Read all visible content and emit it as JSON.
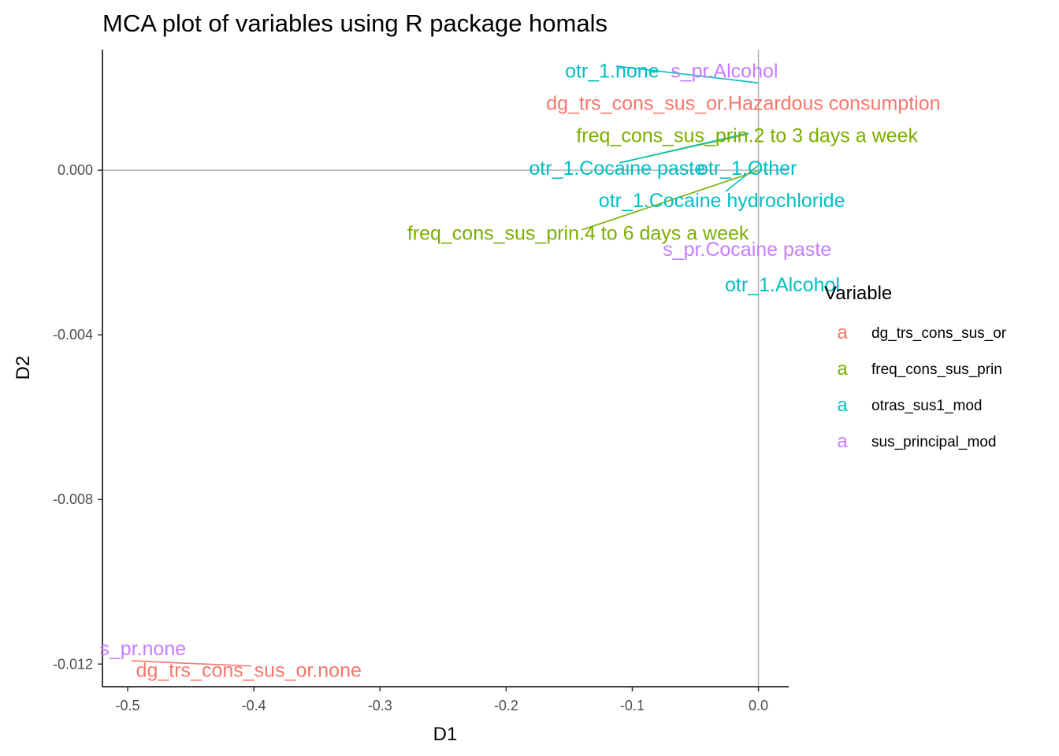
{
  "chart_data": {
    "type": "scatter",
    "title": "MCA plot of variables using R package homals",
    "xlabel": "D1",
    "ylabel": "D2",
    "xlim": [
      -0.52,
      0.024
    ],
    "ylim": [
      -0.01255,
      0.00293
    ],
    "xticks": [
      -0.5,
      -0.4,
      -0.3,
      -0.2,
      -0.1,
      0.0
    ],
    "xtick_labels": [
      "-0.5",
      "-0.4",
      "-0.3",
      "-0.2",
      "-0.1",
      "0.0"
    ],
    "yticks": [
      0.0,
      -0.004,
      -0.008,
      -0.012
    ],
    "ytick_labels": [
      "0.000",
      "-0.004",
      "-0.008",
      "-0.012"
    ],
    "reference_lines": {
      "x": 0,
      "y": 0
    },
    "grid": false,
    "legend": {
      "title": "Variable",
      "position": "right",
      "key_glyph": "a",
      "entries": [
        {
          "name": "dg_trs_cons_sus_or",
          "color": "#F8766D"
        },
        {
          "name": "freq_cons_sus_prin",
          "color": "#7CAE00"
        },
        {
          "name": "otras_sus1_mod",
          "color": "#00BFC4"
        },
        {
          "name": "sus_principal_mod",
          "color": "#C77CFF"
        }
      ]
    },
    "points": [
      {
        "label": "otr_1.none",
        "group": "otras_sus1_mod",
        "x": 0.0,
        "y": 0.0021,
        "label_x": -0.116,
        "label_y": 0.00242
      },
      {
        "label": "s_pr.Alcohol",
        "group": "sus_principal_mod",
        "x": 0.0,
        "y": 0.0021,
        "label_x": -0.027,
        "label_y": 0.00242
      },
      {
        "label": "dg_trs_cons_sus_or.Hazardous consumption",
        "group": "dg_trs_cons_sus_or",
        "x": 0.0,
        "y": 0.0021,
        "label_x": -0.012,
        "label_y": 0.00164
      },
      {
        "label": "freq_cons_sus_prin.2 to 3 days a week",
        "group": "freq_cons_sus_prin",
        "x": 0.0,
        "y": 0.00085,
        "label_x": -0.009,
        "label_y": 0.00085
      },
      {
        "label": "otr_1.Cocaine paste",
        "group": "otras_sus1_mod",
        "x": 0.0,
        "y": 0.00085,
        "label_x": -0.112,
        "label_y": 6e-05
      },
      {
        "label": "otr_1.Other",
        "group": "otras_sus1_mod",
        "x": 0.0,
        "y": 0.0001,
        "label_x": -0.009,
        "label_y": 6e-05
      },
      {
        "label": "otr_1.Cocaine hydrochloride",
        "group": "otras_sus1_mod",
        "x": 0.0,
        "y": 0.0001,
        "label_x": -0.029,
        "label_y": -0.00072
      },
      {
        "label": "freq_cons_sus_prin.4 to 6 days a week",
        "group": "freq_cons_sus_prin",
        "x": 0.0,
        "y": -5e-05,
        "label_x": -0.143,
        "label_y": -0.00152
      },
      {
        "label": "s_pr.Cocaine paste",
        "group": "sus_principal_mod",
        "x": 0.0,
        "y": -0.0019,
        "label_x": -0.009,
        "label_y": -0.00191
      },
      {
        "label": "otr_1.Alcohol",
        "group": "otras_sus1_mod",
        "x": 0.0,
        "y": -0.0028,
        "label_x": 0.019,
        "label_y": -0.00277
      },
      {
        "label": "s_pr.none",
        "group": "sus_principal_mod",
        "x": -0.497,
        "y": -0.01192,
        "label_x": -0.488,
        "label_y": -0.01161
      },
      {
        "label": "dg_trs_cons_sus_or.none",
        "group": "dg_trs_cons_sus_or",
        "x": -0.497,
        "y": -0.01192,
        "label_x": -0.404,
        "label_y": -0.01214
      }
    ],
    "connector_segments": [
      {
        "group": "otras_sus1_mod",
        "from": [
          -0.113,
          0.00253
        ],
        "to": [
          0.0,
          0.00212
        ]
      },
      {
        "group": "freq_cons_sus_prin",
        "from": [
          -0.11,
          0.00018
        ],
        "to": [
          -0.008,
          0.00088
        ]
      },
      {
        "group": "otras_sus1_mod",
        "from": [
          -0.11,
          0.00018
        ],
        "to": [
          -0.008,
          0.0009
        ]
      },
      {
        "group": "otras_sus1_mod",
        "from": [
          -0.026,
          -0.00052
        ],
        "to": [
          0.0,
          0.00012
        ]
      },
      {
        "group": "freq_cons_sus_prin",
        "from": [
          -0.14,
          -0.00145
        ],
        "to": [
          0.0,
          -1e-05
        ]
      },
      {
        "group": "dg_trs_cons_sus_or",
        "from": [
          -0.497,
          -0.01192
        ],
        "to": [
          -0.402,
          -0.01205
        ]
      }
    ]
  }
}
